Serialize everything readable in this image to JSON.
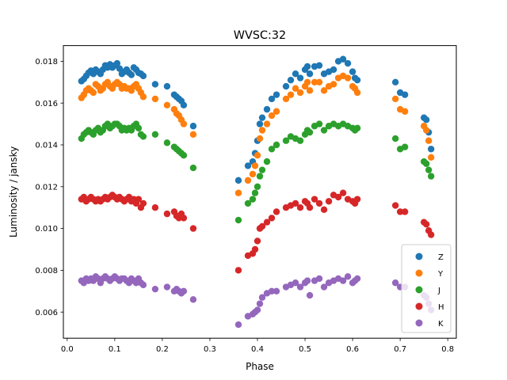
{
  "chart_data": {
    "type": "scatter",
    "title": "WVSC:32",
    "xlabel": "Phase",
    "ylabel": "Luminosity / jansky",
    "xlim": [
      -0.008,
      0.818
    ],
    "ylim": [
      0.00475,
      0.01875
    ],
    "xticks": [
      0.0,
      0.1,
      0.2,
      0.3,
      0.4,
      0.5,
      0.6,
      0.7,
      0.8
    ],
    "xtick_labels": [
      "0.0",
      "0.1",
      "0.2",
      "0.3",
      "0.4",
      "0.5",
      "0.6",
      "0.7",
      "0.8"
    ],
    "yticks": [
      0.006,
      0.008,
      0.01,
      0.012,
      0.014,
      0.016,
      0.018
    ],
    "ytick_labels": [
      "0.006",
      "0.008",
      "0.010",
      "0.012",
      "0.014",
      "0.016",
      "0.018"
    ],
    "grid": false,
    "legend_position": "bottom-right",
    "phase": [
      0.03,
      0.035,
      0.04,
      0.045,
      0.05,
      0.055,
      0.06,
      0.065,
      0.07,
      0.075,
      0.08,
      0.085,
      0.09,
      0.095,
      0.1,
      0.105,
      0.11,
      0.115,
      0.12,
      0.125,
      0.13,
      0.135,
      0.14,
      0.145,
      0.15,
      0.155,
      0.16,
      0.185,
      0.21,
      0.225,
      0.23,
      0.235,
      0.24,
      0.245,
      0.265,
      0.36,
      0.38,
      0.39,
      0.395,
      0.4,
      0.405,
      0.41,
      0.42,
      0.43,
      0.44,
      0.46,
      0.47,
      0.48,
      0.49,
      0.5,
      0.505,
      0.51,
      0.52,
      0.53,
      0.54,
      0.55,
      0.56,
      0.57,
      0.58,
      0.59,
      0.6,
      0.605,
      0.61,
      0.69,
      0.7,
      0.71,
      0.75,
      0.755,
      0.76,
      0.765
    ],
    "series": [
      {
        "name": "Z",
        "color": "#1f77b4",
        "values": [
          0.01705,
          0.01715,
          0.0173,
          0.01745,
          0.01755,
          0.0174,
          0.0176,
          0.0175,
          0.0174,
          0.0176,
          0.0178,
          0.0177,
          0.01785,
          0.0177,
          0.0178,
          0.0179,
          0.01765,
          0.0174,
          0.0175,
          0.0176,
          0.01745,
          0.01735,
          0.0177,
          0.0176,
          0.01745,
          0.0174,
          0.0173,
          0.0169,
          0.0168,
          0.0164,
          0.0163,
          0.0162,
          0.0161,
          0.0159,
          0.0149,
          0.0123,
          0.013,
          0.0132,
          0.0136,
          0.0142,
          0.015,
          0.0153,
          0.0157,
          0.0162,
          0.0164,
          0.0168,
          0.0171,
          0.0174,
          0.0172,
          0.0176,
          0.01775,
          0.0174,
          0.01775,
          0.0178,
          0.0174,
          0.0175,
          0.0176,
          0.018,
          0.0181,
          0.0179,
          0.0175,
          0.0172,
          0.0171,
          0.017,
          0.0165,
          0.0164,
          0.0153,
          0.0152,
          0.0146,
          0.0138
        ]
      },
      {
        "name": "Y",
        "color": "#ff7f0e",
        "values": [
          0.01625,
          0.0164,
          0.0166,
          0.0167,
          0.0166,
          0.0165,
          0.0169,
          0.0168,
          0.0166,
          0.0167,
          0.0169,
          0.017,
          0.0168,
          0.0167,
          0.0169,
          0.017,
          0.0169,
          0.0167,
          0.0168,
          0.0167,
          0.0167,
          0.0166,
          0.0168,
          0.0169,
          0.0167,
          0.0165,
          0.0163,
          0.0162,
          0.0159,
          0.0157,
          0.0155,
          0.0154,
          0.0152,
          0.015,
          0.0145,
          0.0117,
          0.0123,
          0.0126,
          0.013,
          0.0135,
          0.0143,
          0.0147,
          0.015,
          0.0154,
          0.0156,
          0.0162,
          0.0164,
          0.0167,
          0.0165,
          0.0168,
          0.017,
          0.0166,
          0.017,
          0.017,
          0.0166,
          0.0168,
          0.0169,
          0.0172,
          0.0173,
          0.0172,
          0.0168,
          0.0167,
          0.0165,
          0.0162,
          0.0157,
          0.0156,
          0.0149,
          0.0147,
          0.0142,
          0.0134
        ]
      },
      {
        "name": "J",
        "color": "#2ca02c",
        "values": [
          0.0143,
          0.0145,
          0.0146,
          0.0147,
          0.0146,
          0.0145,
          0.0147,
          0.0148,
          0.0146,
          0.0147,
          0.0149,
          0.015,
          0.0148,
          0.0149,
          0.015,
          0.015,
          0.0149,
          0.0147,
          0.0148,
          0.0147,
          0.0148,
          0.0147,
          0.0149,
          0.015,
          0.0148,
          0.0145,
          0.0144,
          0.0145,
          0.0141,
          0.0139,
          0.0138,
          0.0137,
          0.0136,
          0.0135,
          0.0129,
          0.0104,
          0.0112,
          0.0114,
          0.0117,
          0.012,
          0.0125,
          0.0128,
          0.0132,
          0.0138,
          0.014,
          0.0142,
          0.0144,
          0.0143,
          0.0142,
          0.0145,
          0.0147,
          0.0146,
          0.0149,
          0.015,
          0.0147,
          0.0149,
          0.015,
          0.0149,
          0.015,
          0.0149,
          0.0148,
          0.0147,
          0.0148,
          0.0143,
          0.0138,
          0.0139,
          0.0132,
          0.0131,
          0.0128,
          0.0125
        ]
      },
      {
        "name": "H",
        "color": "#d62728",
        "values": [
          0.0114,
          0.0115,
          0.0113,
          0.0114,
          0.0115,
          0.0114,
          0.0113,
          0.0114,
          0.0113,
          0.0114,
          0.0115,
          0.0114,
          0.0115,
          0.0116,
          0.0115,
          0.0114,
          0.0115,
          0.0114,
          0.0113,
          0.0114,
          0.0115,
          0.0113,
          0.0114,
          0.0112,
          0.0114,
          0.011,
          0.0112,
          0.011,
          0.0107,
          0.0108,
          0.0106,
          0.0105,
          0.0107,
          0.0105,
          0.01,
          0.008,
          0.0087,
          0.0088,
          0.009,
          0.0094,
          0.01,
          0.0101,
          0.0103,
          0.0105,
          0.0108,
          0.011,
          0.0111,
          0.0112,
          0.011,
          0.0113,
          0.0112,
          0.011,
          0.0114,
          0.0112,
          0.0109,
          0.0113,
          0.0116,
          0.0115,
          0.0117,
          0.0114,
          0.0113,
          0.0112,
          0.0114,
          0.0111,
          0.0108,
          0.0108,
          0.0103,
          0.0102,
          0.0099,
          0.0097
        ]
      },
      {
        "name": "K",
        "color": "#9467bd",
        "values": [
          0.0075,
          0.0074,
          0.0076,
          0.0075,
          0.0076,
          0.0075,
          0.0077,
          0.0076,
          0.0074,
          0.0076,
          0.0077,
          0.0076,
          0.0075,
          0.0076,
          0.0077,
          0.0076,
          0.0075,
          0.0076,
          0.0076,
          0.0075,
          0.0074,
          0.0076,
          0.0075,
          0.0074,
          0.0076,
          0.0074,
          0.0073,
          0.0071,
          0.0072,
          0.007,
          0.0071,
          0.007,
          0.0069,
          0.007,
          0.0066,
          0.0054,
          0.0058,
          0.0059,
          0.006,
          0.0061,
          0.0064,
          0.0067,
          0.0069,
          0.007,
          0.007,
          0.0072,
          0.0073,
          0.0074,
          0.0072,
          0.0074,
          0.0075,
          0.0068,
          0.0075,
          0.0076,
          0.0072,
          0.0074,
          0.0075,
          0.0076,
          0.0075,
          0.0077,
          0.0074,
          0.0075,
          0.0076,
          0.0074,
          0.0072,
          0.0072,
          0.0068,
          0.0067,
          0.0064,
          0.0061
        ]
      }
    ]
  }
}
